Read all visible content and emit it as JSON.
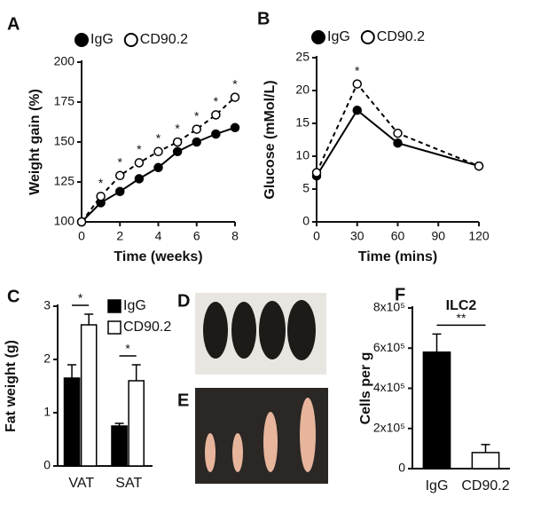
{
  "chart_data": [
    {
      "type": "line",
      "panel_label": "A",
      "xlabel": "Time (weeks)",
      "ylabel": "Weight gain (%)",
      "x": [
        0,
        1,
        2,
        3,
        4,
        5,
        6,
        7,
        8
      ],
      "xlim": [
        0,
        8
      ],
      "xticks": [
        0,
        2,
        4,
        6,
        8
      ],
      "ylim": [
        100,
        200
      ],
      "yticks": [
        100,
        125,
        150,
        175,
        200
      ],
      "series": [
        {
          "name": "IgG",
          "color": "#000000",
          "line_color": "#000000",
          "dashed": false,
          "values": [
            100,
            112,
            119,
            127,
            134,
            144,
            150,
            155,
            159
          ]
        },
        {
          "name": "CD90.2",
          "color": "#ffffff",
          "line_color": "#000000",
          "dashed": true,
          "values": [
            100,
            116,
            129,
            137,
            144,
            150,
            158,
            167,
            178
          ],
          "annotations": [
            null,
            "*",
            "*",
            "*",
            "*",
            "*",
            "*",
            "*",
            "*"
          ]
        }
      ]
    },
    {
      "type": "line",
      "panel_label": "B",
      "xlabel": "Time (mins)",
      "ylabel": "Glucose (mMol/L)",
      "x": [
        0,
        30,
        60,
        120
      ],
      "xlim": [
        0,
        120
      ],
      "xticks": [
        0,
        30,
        60,
        90,
        120
      ],
      "ylim": [
        0,
        25
      ],
      "yticks": [
        0,
        5,
        10,
        15,
        20,
        25
      ],
      "series": [
        {
          "name": "IgG",
          "color": "#000000",
          "line_color": "#000000",
          "dashed": false,
          "values": [
            7,
            17,
            12,
            8.5
          ]
        },
        {
          "name": "CD90.2",
          "color": "#ffffff",
          "line_color": "#000000",
          "dashed": true,
          "values": [
            7.5,
            21,
            13.5,
            8.5
          ],
          "annotations": [
            null,
            "*",
            null,
            null
          ]
        }
      ]
    },
    {
      "type": "bar",
      "panel_label": "C",
      "ylabel": "Fat weight (g)",
      "categories": [
        "VAT",
        "SAT"
      ],
      "ylim": [
        0,
        3
      ],
      "yticks": [
        0,
        1,
        2,
        3
      ],
      "series": [
        {
          "name": "IgG",
          "color": "#000000",
          "values": [
            1.65,
            0.75
          ],
          "errors": [
            0.25,
            0.05
          ]
        },
        {
          "name": "CD90.2",
          "color": "#ffffff",
          "values": [
            2.65,
            1.6
          ],
          "errors": [
            0.2,
            0.3
          ]
        }
      ],
      "significance": [
        "*",
        "*"
      ]
    },
    {
      "type": "bar",
      "panel_label": "F",
      "title": "ILC2",
      "ylabel": "Cells per g",
      "categories": [
        "IgG",
        "CD90.2"
      ],
      "values": [
        580000,
        80000
      ],
      "errors": [
        90000,
        40000
      ],
      "colors": [
        "#000000",
        "#ffffff"
      ],
      "ylim": [
        0,
        800000
      ],
      "yticks": [
        0,
        {
          "value": 200000,
          "label": "2x10⁵"
        },
        {
          "value": 400000,
          "label": "4x10⁵"
        },
        {
          "value": 600000,
          "label": "6x10⁵"
        },
        {
          "value": 800000,
          "label": "8x10⁵"
        }
      ],
      "significance": "**"
    }
  ],
  "photos": [
    {
      "label": "D"
    },
    {
      "label": "E"
    }
  ]
}
